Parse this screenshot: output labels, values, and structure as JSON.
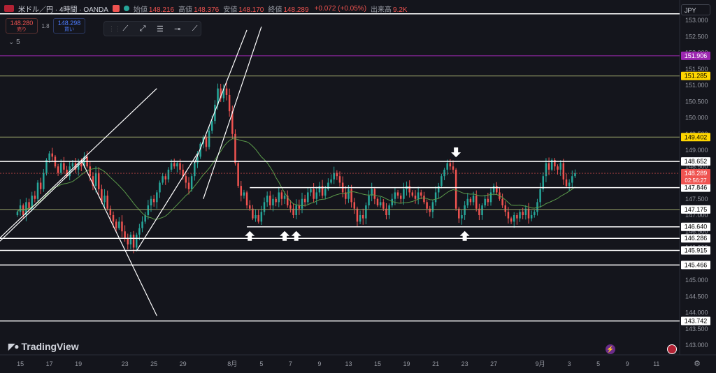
{
  "header": {
    "symbol": "米ドル／円 · 4時間 · OANDA",
    "open_label": "始値",
    "open": "148.216",
    "high_label": "高値",
    "high": "148.376",
    "low_label": "安値",
    "low": "148.170",
    "close_label": "終値",
    "close": "148.289",
    "change": "+0.072 (+0.05%)",
    "volume_label": "出来高",
    "volume": "9.2K"
  },
  "trade": {
    "sell_price": "148.280",
    "sell_label": "売り",
    "spread": "1.8",
    "buy_price": "148.298",
    "buy_label": "買い"
  },
  "indicator_toggle": "5",
  "currency": "JPY",
  "logo_text": "TradingView",
  "colors": {
    "background": "#14151c",
    "up": "#26a69a",
    "down": "#ef5350",
    "ma": "#5b9a4a",
    "purple_line": "#9c27b0",
    "olive_line": "#9aa36a",
    "yellow_label": "#ffd600"
  },
  "chart_data": {
    "type": "candlestick",
    "ylim": [
      143.0,
      153.3
    ],
    "y_ticks": [
      143.0,
      143.5,
      144.0,
      144.5,
      145.0,
      145.5,
      146.0,
      146.5,
      147.0,
      147.5,
      148.0,
      148.5,
      149.0,
      149.5,
      150.0,
      150.5,
      151.0,
      151.5,
      152.0,
      152.5,
      153.0
    ],
    "x_ticks": [
      "15",
      "17",
      "19",
      "23",
      "25",
      "29",
      "8月",
      "5",
      "7",
      "9",
      "13",
      "15",
      "19",
      "21",
      "23",
      "27",
      "9月",
      "3",
      "5",
      "9",
      "11"
    ],
    "x_tick_index": [
      1,
      11,
      21,
      37,
      47,
      57,
      74,
      84,
      94,
      104,
      114,
      124,
      134,
      144,
      154,
      164,
      180,
      190,
      200,
      210,
      220
    ],
    "x_range": [
      -6,
      228
    ],
    "closes": [
      147.1,
      147.3,
      147.0,
      147.4,
      147.2,
      147.6,
      147.5,
      148.0,
      147.8,
      148.3,
      148.7,
      148.9,
      148.8,
      148.5,
      148.3,
      148.6,
      148.4,
      148.2,
      148.5,
      148.6,
      148.4,
      148.6,
      148.5,
      148.8,
      148.5,
      148.2,
      147.9,
      148.3,
      147.8,
      147.4,
      147.6,
      147.2,
      147.0,
      146.8,
      146.6,
      146.8,
      146.5,
      146.3,
      146.1,
      146.4,
      146.0,
      146.4,
      146.6,
      146.8,
      147.0,
      147.3,
      147.5,
      147.4,
      147.7,
      148.0,
      148.2,
      148.1,
      148.4,
      148.6,
      148.5,
      148.6,
      148.4,
      148.2,
      148.0,
      147.8,
      148.2,
      148.6,
      148.8,
      149.2,
      149.4,
      149.1,
      149.6,
      149.9,
      150.4,
      150.9,
      150.6,
      150.9,
      150.7,
      150.2,
      149.5,
      148.6,
      147.9,
      147.6,
      147.7,
      147.3,
      147.2,
      146.9,
      147.0,
      146.8,
      147.1,
      147.4,
      147.6,
      147.3,
      147.5,
      147.4,
      147.7,
      147.5,
      147.6,
      147.3,
      147.2,
      147.0,
      147.3,
      147.2,
      147.5,
      147.4,
      147.7,
      147.8,
      147.5,
      147.7,
      147.9,
      147.6,
      147.8,
      148.0,
      148.1,
      148.3,
      148.2,
      148.0,
      147.7,
      147.5,
      147.8,
      147.4,
      147.2,
      146.8,
      147.0,
      146.9,
      147.3,
      147.6,
      147.8,
      147.5,
      147.3,
      147.4,
      147.2,
      147.0,
      147.3,
      147.5,
      147.7,
      147.6,
      147.5,
      147.8,
      147.9,
      147.7,
      147.6,
      147.5,
      147.7,
      147.6,
      147.4,
      147.2,
      147.1,
      147.4,
      147.7,
      147.9,
      148.2,
      148.4,
      148.6,
      148.5,
      148.4,
      147.2,
      146.9,
      147.0,
      147.3,
      147.5,
      147.4,
      147.6,
      147.2,
      147.0,
      147.3,
      147.5,
      147.4,
      147.7,
      147.9,
      147.7,
      147.5,
      147.3,
      147.1,
      146.9,
      146.8,
      147.0,
      146.9,
      147.1,
      147.0,
      147.2,
      146.9,
      147.0,
      147.1,
      147.4,
      147.8,
      148.2,
      148.6,
      148.4,
      148.7,
      148.5,
      148.4,
      148.6,
      148.1,
      147.9,
      148.0,
      148.2,
      148.29
    ],
    "horizontal_levels": [
      {
        "price": 151.906,
        "label": "151.906",
        "color": "#9c27b0",
        "label_style": "purple"
      },
      {
        "price": 151.285,
        "label": "151.285",
        "color": "#9aa36a",
        "label_style": "yellow"
      },
      {
        "price": 149.402,
        "label": "149.402",
        "color": "#9aa36a",
        "label_style": "yellow"
      },
      {
        "price": 148.652,
        "label": "148.652",
        "color": "#ffffff",
        "label_style": "white"
      },
      {
        "price": 147.846,
        "label": "147.846",
        "color": "#ffffff",
        "label_style": "white",
        "start_index": 80
      },
      {
        "price": 147.175,
        "label": "147.175",
        "color": "#9aa36a",
        "label_style": "white"
      },
      {
        "price": 146.64,
        "label": "146.640",
        "color": "#ffffff",
        "label_style": "white",
        "start_index": 79
      },
      {
        "price": 146.286,
        "label": "146.286",
        "color": "#ffffff",
        "label_style": "white"
      },
      {
        "price": 145.915,
        "label": "145.915",
        "color": "#ffffff",
        "label_style": "white"
      },
      {
        "price": 145.466,
        "label": "145.466",
        "color": "#ffffff",
        "label_style": "white"
      },
      {
        "price": 143.742,
        "label": "143.742",
        "color": "#ffffff",
        "label_style": "white"
      },
      {
        "price": 153.2,
        "label": "",
        "color": "#ffffff",
        "label_style": "none"
      }
    ],
    "current_price": {
      "price": "148.289",
      "countdown": "02:56:27",
      "near_price": "148.309"
    },
    "trendlines": [
      {
        "from": [
          -6,
          146.3
        ],
        "to": [
          48,
          150.9
        ]
      },
      {
        "from": [
          -6,
          146.2
        ],
        "to": [
          24,
          148.8
        ]
      },
      {
        "from": [
          22,
          148.7
        ],
        "to": [
          48,
          143.9
        ]
      },
      {
        "from": [
          41,
          145.9
        ],
        "to": [
          62,
          148.9
        ]
      },
      {
        "from": [
          61,
          148.6
        ],
        "to": [
          79,
          152.7
        ]
      },
      {
        "from": [
          64,
          147.5
        ],
        "to": [
          84,
          152.8
        ]
      }
    ],
    "arrows": [
      {
        "index": 80,
        "direction": "up"
      },
      {
        "index": 92,
        "direction": "up"
      },
      {
        "index": 96,
        "direction": "up"
      },
      {
        "index": 151,
        "direction": "down"
      },
      {
        "index": 154,
        "direction": "up"
      }
    ]
  }
}
